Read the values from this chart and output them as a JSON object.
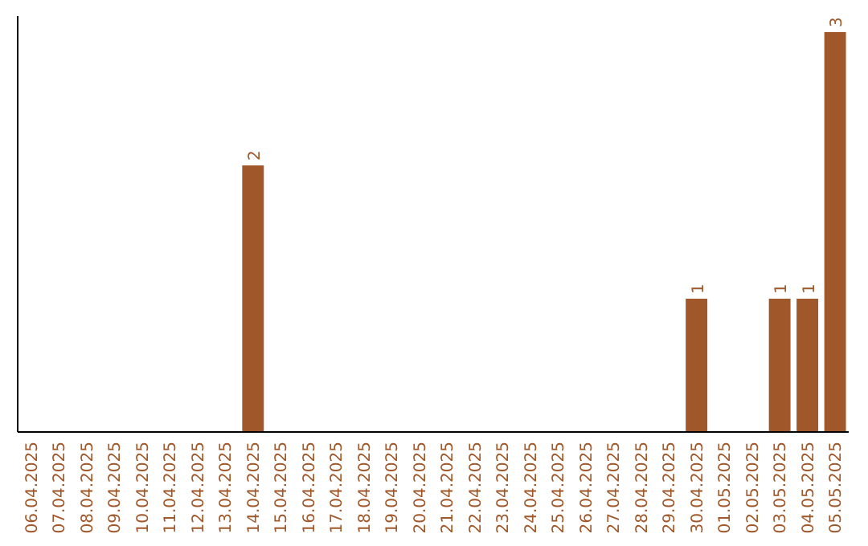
{
  "chart_data": {
    "type": "bar",
    "categories": [
      "06.04.2025",
      "07.04.2025",
      "08.04.2025",
      "09.04.2025",
      "10.04.2025",
      "11.04.2025",
      "12.04.2025",
      "13.04.2025",
      "14.04.2025",
      "15.04.2025",
      "16.04.2025",
      "17.04.2025",
      "18.04.2025",
      "19.04.2025",
      "20.04.2025",
      "21.04.2025",
      "22.04.2025",
      "23.04.2025",
      "24.04.2025",
      "25.04.2025",
      "26.04.2025",
      "27.04.2025",
      "28.04.2025",
      "29.04.2025",
      "30.04.2025",
      "01.05.2025",
      "02.05.2025",
      "03.05.2025",
      "04.05.2025",
      "05.05.2025"
    ],
    "values": [
      0,
      0,
      0,
      0,
      0,
      0,
      0,
      0,
      2,
      0,
      0,
      0,
      0,
      0,
      0,
      0,
      0,
      0,
      0,
      0,
      0,
      0,
      0,
      0,
      1,
      0,
      0,
      1,
      1,
      3
    ],
    "value_labels": [
      null,
      null,
      null,
      null,
      null,
      null,
      null,
      null,
      "2",
      null,
      null,
      null,
      null,
      null,
      null,
      null,
      null,
      null,
      null,
      null,
      null,
      null,
      null,
      null,
      "1",
      null,
      null,
      "1",
      "1",
      "3"
    ],
    "color": "#a0582a"
  }
}
